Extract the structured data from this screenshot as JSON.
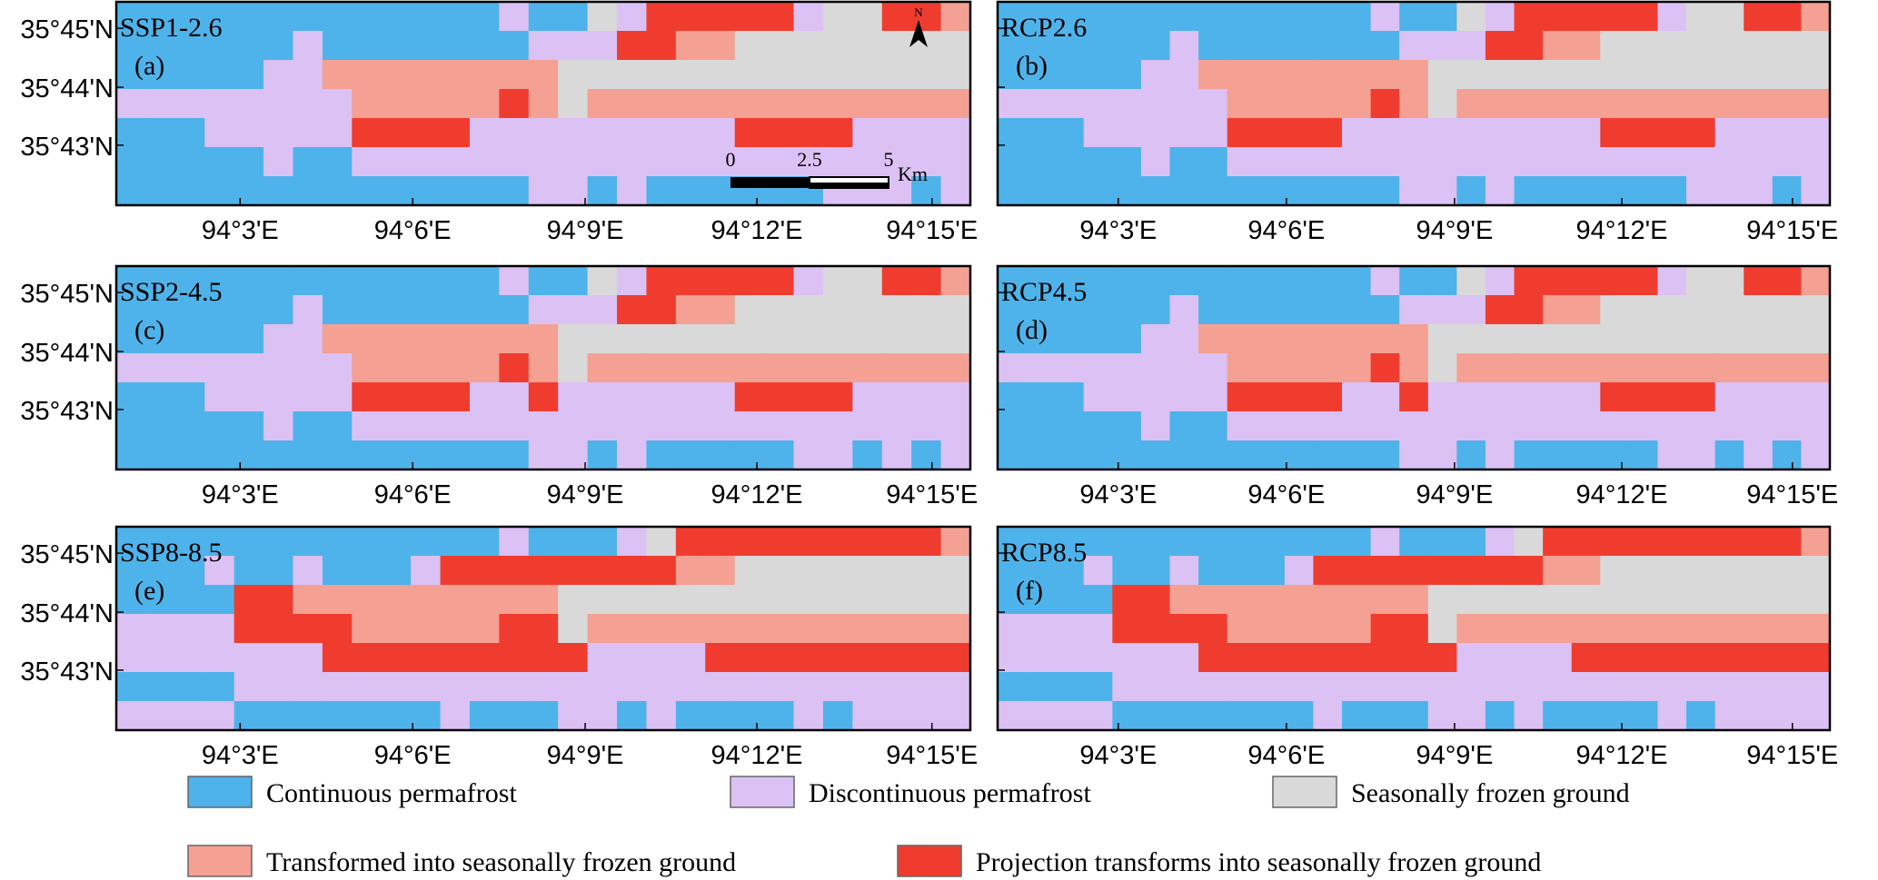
{
  "panels": [
    {
      "scenario": "SSP1-2.6",
      "letter": "(a)"
    },
    {
      "scenario": "RCP2.6",
      "letter": "(b)"
    },
    {
      "scenario": "SSP2-4.5",
      "letter": "(c)"
    },
    {
      "scenario": "RCP4.5",
      "letter": "(d)"
    },
    {
      "scenario": "SSP8-8.5",
      "letter": "(e)"
    },
    {
      "scenario": "RCP8.5",
      "letter": "(f)"
    }
  ],
  "lat_ticks": [
    "35°45'N",
    "35°44'N",
    "35°43'N"
  ],
  "lon_ticks": [
    "94°3'E",
    "94°6'E",
    "94°9'E",
    "94°12'E",
    "94°15'E"
  ],
  "scale_bar": {
    "labels": [
      "0",
      "2.5",
      "5"
    ],
    "unit": "Km"
  },
  "north": "N",
  "legend": [
    {
      "label": "Continuous permafrost",
      "color": "#4eb3ea"
    },
    {
      "label": "Discontinuous permafrost",
      "color": "#dcc1f5"
    },
    {
      "label": "Seasonally frozen ground",
      "color": "#d9d9d9"
    },
    {
      "label": "Transformed into seasonally frozen ground",
      "color": "#f4a093"
    },
    {
      "label": "Projection transforms into seasonally frozen ground",
      "color": "#f03c2f"
    }
  ]
}
